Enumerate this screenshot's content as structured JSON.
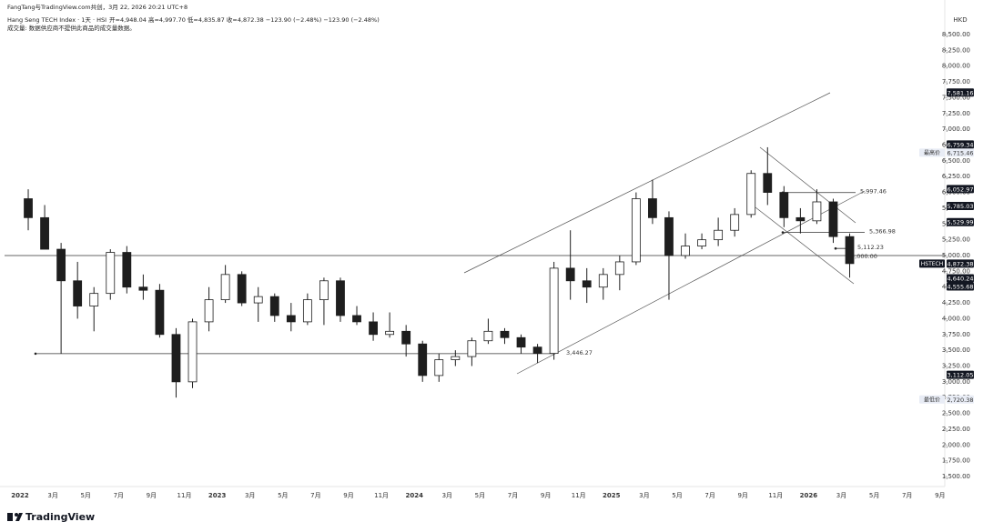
{
  "header": {
    "credit": "FangTang与TradingView.com共创，3月 22, 2026 20:21 UTC+8",
    "symbol": "Hang Seng TECH Index · 1天 · HSI",
    "ohlc": "开=4,948.04  高=4,997.70  低=4,835.87  收=4,872.38  −123.90 (−2.48%)  −123.90 (−2.48%)",
    "volume_note": "成交量: 数据供应商不提供此商品的成交量数据。",
    "currency": "HKD"
  },
  "footer": {
    "logo": "TradingView"
  },
  "chart_data": {
    "type": "candlestick",
    "categories": [
      "2022",
      null,
      "3月",
      null,
      "5月",
      null,
      "7月",
      null,
      "9月",
      null,
      "11月",
      null,
      "2023",
      null,
      "3月",
      null,
      "5月",
      null,
      "7月",
      null,
      "9月",
      null,
      "11月",
      null,
      "2024",
      null,
      "3月",
      null,
      "5月",
      null,
      "7月",
      null,
      "9月",
      null,
      "11月",
      null,
      "2025",
      null,
      "3月",
      null,
      "5月",
      null,
      "7月",
      null,
      "9月",
      null,
      "11月",
      null,
      "2026",
      null,
      "3月",
      null,
      "5月",
      null,
      "7月",
      null,
      "9月"
    ],
    "open": [
      5900,
      5600,
      5100,
      4600,
      4200,
      4400,
      5050,
      4500,
      4450,
      3750,
      3000,
      3950,
      4300,
      4700,
      4250,
      4350,
      4050,
      3950,
      4300,
      4600,
      4050,
      3950,
      3750,
      3800,
      3600,
      3100,
      3350,
      3400,
      3650,
      3800,
      3700,
      3550,
      3450,
      4800,
      4600,
      4500,
      4700,
      4900,
      5900,
      5600,
      5000,
      5150,
      5250,
      5400,
      5650,
      6300,
      6000,
      5600,
      5550,
      5850,
      5300,
      null,
      null,
      null,
      null,
      null,
      null
    ],
    "high": [
      6050,
      5800,
      5200,
      4900,
      4500,
      5100,
      5150,
      4700,
      4550,
      3850,
      4000,
      4500,
      4850,
      4750,
      4500,
      4400,
      4250,
      4400,
      4650,
      4650,
      4200,
      4100,
      4100,
      3900,
      3650,
      3450,
      3500,
      3700,
      4000,
      3850,
      3750,
      3600,
      4900,
      5400,
      4800,
      4800,
      5000,
      6000,
      6200,
      5700,
      5350,
      5350,
      5600,
      5750,
      6350,
      6715,
      6100,
      5750,
      6050,
      5900,
      5350,
      null,
      null,
      null,
      null,
      null,
      null
    ],
    "low": [
      5400,
      5100,
      3446,
      4000,
      3800,
      4300,
      4400,
      4300,
      3700,
      2750,
      2900,
      3800,
      4250,
      4200,
      3950,
      3950,
      3800,
      3900,
      3900,
      3950,
      3900,
      3650,
      3700,
      3400,
      3000,
      3000,
      3250,
      3250,
      3600,
      3600,
      3450,
      3300,
      3350,
      4300,
      4250,
      4300,
      4450,
      4850,
      5500,
      4300,
      4950,
      5100,
      5150,
      5300,
      5600,
      5800,
      5450,
      5350,
      5500,
      5200,
      4650,
      null,
      null,
      null,
      null,
      null,
      null
    ],
    "close": [
      5600,
      5100,
      4600,
      4200,
      4400,
      5050,
      4500,
      4450,
      3750,
      3000,
      3950,
      4300,
      4700,
      4250,
      4350,
      4050,
      3950,
      4300,
      4600,
      4050,
      3950,
      3750,
      3800,
      3600,
      3100,
      3350,
      3400,
      3650,
      3800,
      3700,
      3550,
      3450,
      4800,
      4600,
      4500,
      4700,
      4900,
      5900,
      5600,
      5000,
      5150,
      5250,
      5400,
      5650,
      6300,
      6000,
      5600,
      5550,
      5850,
      5300,
      4872.38,
      null,
      null,
      null,
      null,
      null,
      null
    ],
    "up_color": "#ffffff",
    "down_color": "#1e1e1e",
    "edge_color": "#1e1e1e",
    "ylim": [
      1500,
      8500
    ],
    "yticks": [
      {
        "value": 1500,
        "label": "1,500.00"
      },
      {
        "value": 1750,
        "label": "1,750.00"
      },
      {
        "value": 2000,
        "label": "2,000.00"
      },
      {
        "value": 2250,
        "label": "2,250.00"
      },
      {
        "value": 2500,
        "label": "2,500.00"
      },
      {
        "value": 2750,
        "label": "2,750.00"
      },
      {
        "value": 3000,
        "label": "3,000.00"
      },
      {
        "value": 3250,
        "label": "3,250.00"
      },
      {
        "value": 3500,
        "label": "3,500.00"
      },
      {
        "value": 3750,
        "label": "3,750.00"
      },
      {
        "value": 4000,
        "label": "4,000.00"
      },
      {
        "value": 4250,
        "label": "4,250.00"
      },
      {
        "value": 4500,
        "label": "4,500.00"
      },
      {
        "value": 4750,
        "label": "4,750.00"
      },
      {
        "value": 5000,
        "label": "5,000.00"
      },
      {
        "value": 5250,
        "label": "5,250.00"
      },
      {
        "value": 5500,
        "label": "5,500.00"
      },
      {
        "value": 5750,
        "label": "5,750.00"
      },
      {
        "value": 6000,
        "label": "6,000.00"
      },
      {
        "value": 6250,
        "label": "6,250.00"
      },
      {
        "value": 6500,
        "label": "6,500.00"
      },
      {
        "value": 6750,
        "label": "6,750.00"
      },
      {
        "value": 7000,
        "label": "7,000.00"
      },
      {
        "value": 7250,
        "label": "7,250.00"
      },
      {
        "value": 7500,
        "label": "7,500.00"
      },
      {
        "value": 7750,
        "label": "7,750.00"
      },
      {
        "value": 8000,
        "label": "8,000.00"
      },
      {
        "value": 8250,
        "label": "8,250.00"
      },
      {
        "value": 8500,
        "label": "8,500.00"
      }
    ],
    "levels": [
      {
        "value": 5000,
        "label": "5,000.00"
      },
      {
        "value": 3446.27,
        "label": "3,446.27"
      },
      {
        "value": 5997.46,
        "label": "5,997.46"
      },
      {
        "value": 5366.98,
        "label": "5,366.98"
      },
      {
        "value": 5112.23,
        "label": "5,112.23"
      }
    ],
    "price_labels": [
      {
        "value": 7581.16,
        "label": "7,581.16"
      },
      {
        "value": 6759.34,
        "label": "6,759.34"
      },
      {
        "value": 6715.46,
        "label": "6,715.46",
        "tag": "最高价"
      },
      {
        "value": 6052.97,
        "label": "6,052.97"
      },
      {
        "value": 5785.03,
        "label": "5,785.03"
      },
      {
        "value": 5529.99,
        "label": "5,529.99"
      },
      {
        "value": 4872.38,
        "label": "4,872.38",
        "tag": "HSTECH"
      },
      {
        "value": 4640.24,
        "label": "4,640.24"
      },
      {
        "value": 4555.68,
        "label": "4,555.68"
      },
      {
        "value": 3112.05,
        "label": "3,112.05"
      },
      {
        "value": 2720.38,
        "label": "2,720.38",
        "tag": "最低价"
      }
    ]
  }
}
